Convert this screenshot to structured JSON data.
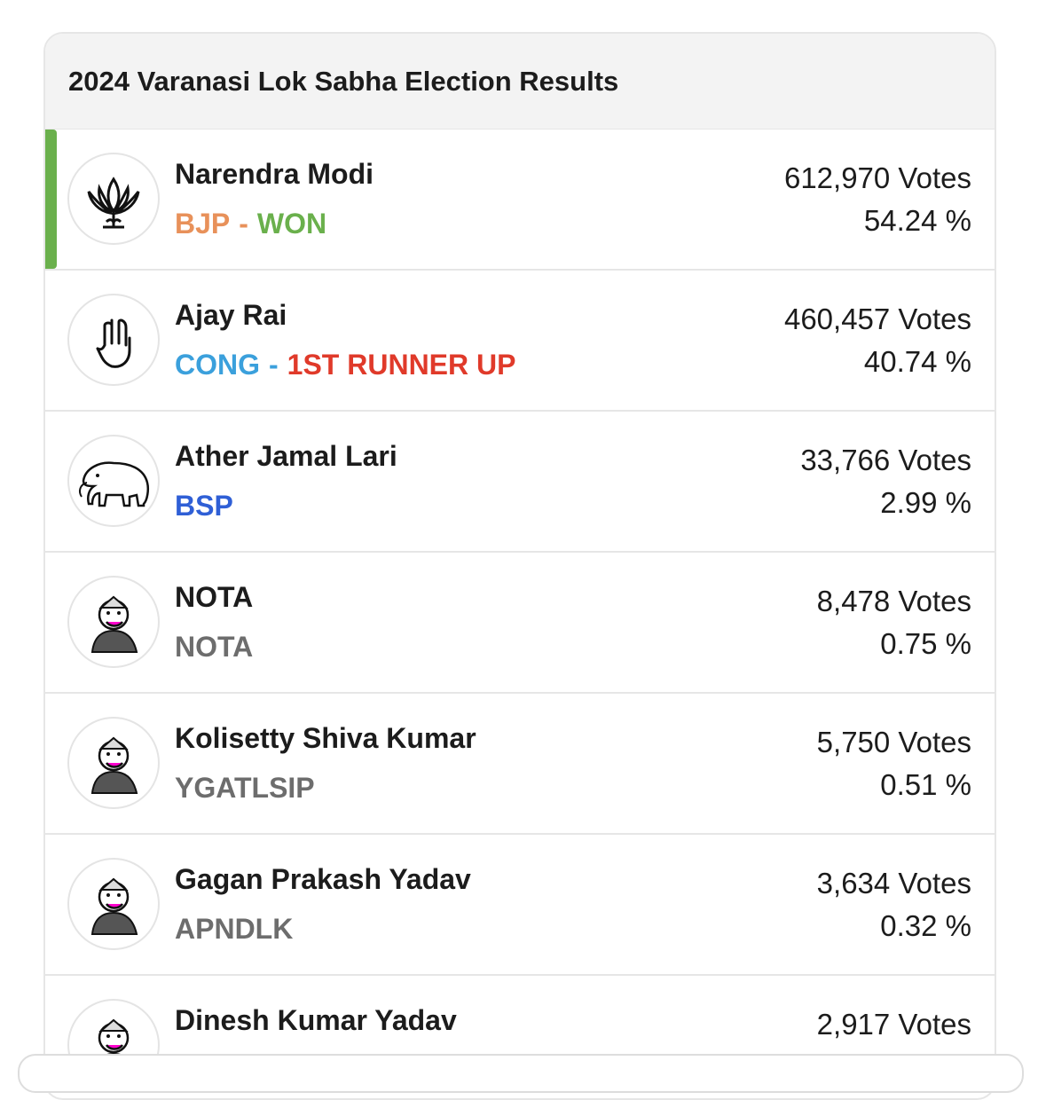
{
  "header": {
    "title": "2024 Varanasi Lok Sabha Election Results"
  },
  "candidates": [
    {
      "name": "Narendra Modi",
      "party": "BJP",
      "separator": "-",
      "status": "WON",
      "votes": "612,970 Votes",
      "share": "54.24 %"
    },
    {
      "name": "Ajay Rai",
      "party": "CONG",
      "separator": "-",
      "status": "1ST RUNNER UP",
      "votes": "460,457 Votes",
      "share": "40.74 %"
    },
    {
      "name": "Ather Jamal Lari",
      "party": "BSP",
      "votes": "33,766 Votes",
      "share": "2.99 %"
    },
    {
      "name": "NOTA",
      "party": "NOTA",
      "votes": "8,478 Votes",
      "share": "0.75 %"
    },
    {
      "name": "Kolisetty Shiva Kumar",
      "party": "YGATLSIP",
      "votes": "5,750 Votes",
      "share": "0.51 %"
    },
    {
      "name": "Gagan Prakash Yadav",
      "party": "APNDLK",
      "votes": "3,634 Votes",
      "share": "0.32 %"
    },
    {
      "name": "Dinesh Kumar Yadav",
      "votes": "2,917 Votes"
    }
  ]
}
